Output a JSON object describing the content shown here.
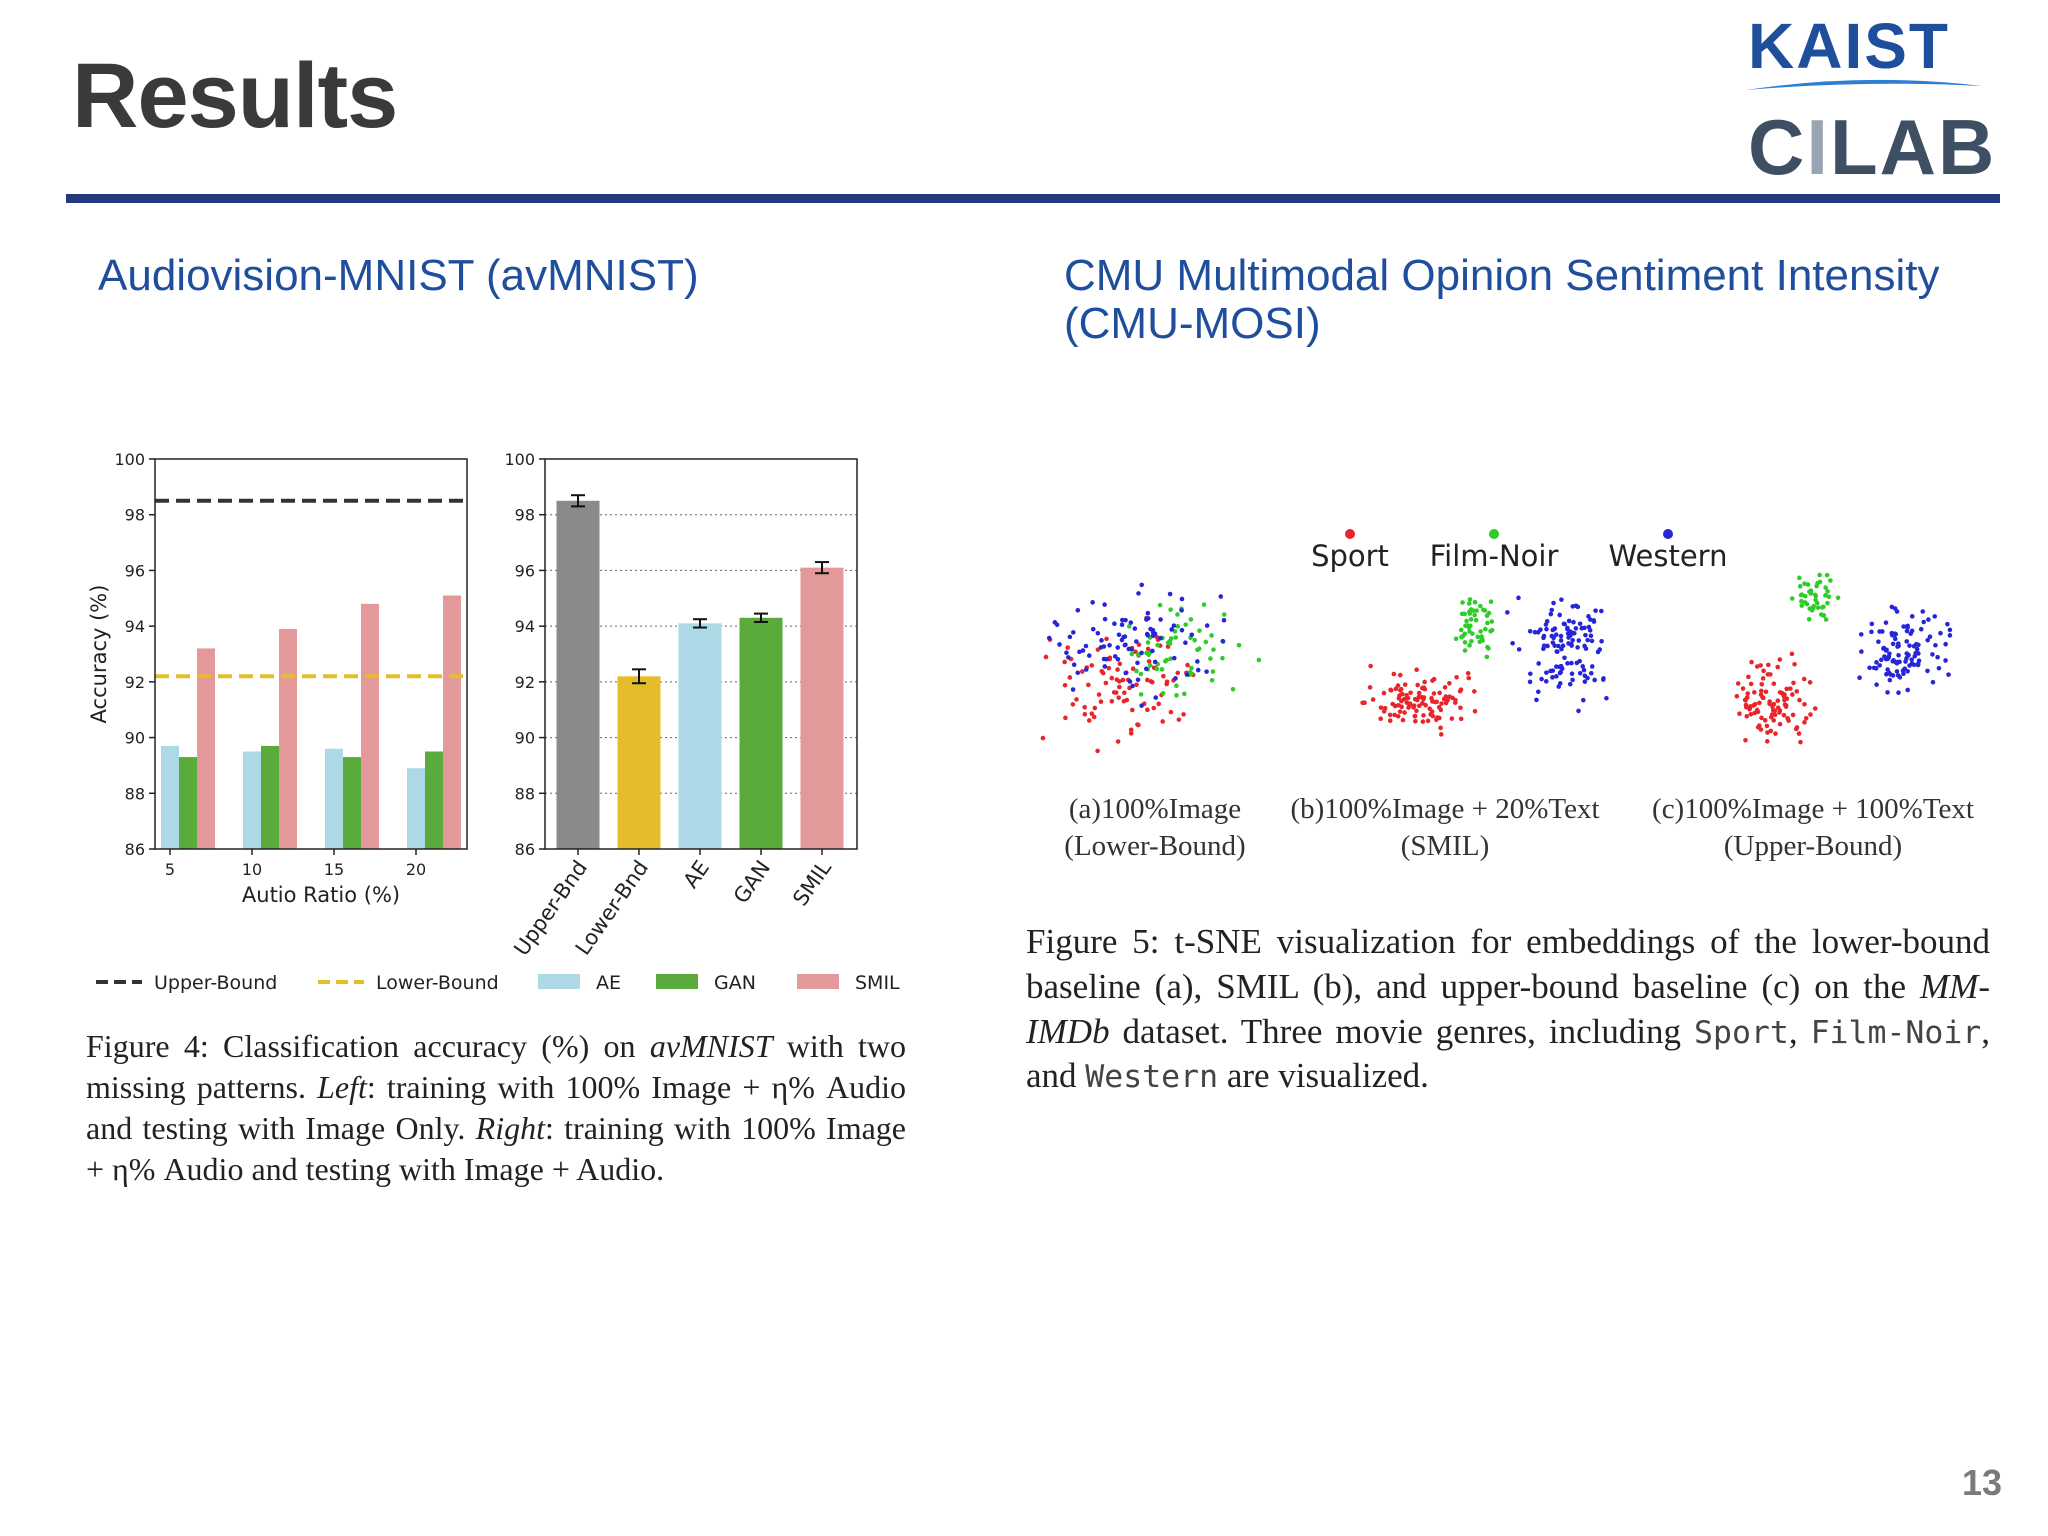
{
  "slide": {
    "title": "Results",
    "page_number": "13"
  },
  "logo": {
    "line1": "KAIST",
    "line2_prefix": "C",
    "line2_highlight": "I",
    "line2_suffix": "LAB"
  },
  "left": {
    "heading": "Audiovision-MNIST (avMNIST)",
    "caption": {
      "p1": "Figure 4: Classification accuracy (%) on ",
      "em1": "avMNIST",
      "p2": " with two missing patterns. ",
      "em2": "Left",
      "p3": ": training with 100% Image + η% Audio and testing with Image Only. ",
      "em3": "Right",
      "p4": ": training with 100% Image + η% Audio and testing with Image + Audio."
    }
  },
  "right": {
    "heading": "CMU Multimodal Opinion Sentiment Intensity (CMU-MOSI)",
    "tsne": {
      "legend": [
        {
          "label": "Sport",
          "color": "#e8262a"
        },
        {
          "label": "Film-Noir",
          "color": "#2ecc28"
        },
        {
          "label": "Western",
          "color": "#2626d8"
        }
      ],
      "panels": [
        {
          "line1": "(a)100%Image",
          "line2": "(Lower-Bound)"
        },
        {
          "line1": "(b)100%Image + 20%Text",
          "line2": "(SMIL)"
        },
        {
          "line1": "(c)100%Image + 100%Text",
          "line2": "(Upper-Bound)"
        }
      ]
    },
    "caption": {
      "p1": "Figure 5: t-SNE visualization for embeddings of the lower-bound baseline (a), SMIL (b), and upper-bound baseline (c) on the ",
      "em1": "MM-IMDb",
      "p2": " dataset. Three movie genres, including ",
      "m1": "Sport",
      "sep1": ", ",
      "m2": "Film-Noir",
      "sep2": ", and ",
      "m3": "Western",
      "p3": " are visualized."
    }
  },
  "chart_data": [
    {
      "type": "bar",
      "x": [
        5,
        10,
        15,
        20
      ],
      "xticks": [
        "5",
        "10",
        "15",
        "20"
      ],
      "xlabel": "Autio Ratio (%)",
      "ylabel": "Accuracy (%)",
      "ylim": [
        86,
        100
      ],
      "yticks": [
        "86",
        "88",
        "90",
        "92",
        "94",
        "96",
        "98",
        "100"
      ],
      "series": [
        {
          "name": "AE",
          "color": "#add8e6",
          "values": [
            89.7,
            89.5,
            89.6,
            88.9
          ]
        },
        {
          "name": "GAN",
          "color": "#5aab3c",
          "values": [
            89.3,
            89.7,
            89.3,
            89.5
          ]
        },
        {
          "name": "SMIL",
          "color": "#e3989a",
          "values": [
            93.2,
            93.9,
            94.8,
            95.1
          ]
        }
      ],
      "reference_lines": [
        {
          "name": "Upper-Bound",
          "value": 98.5,
          "color": "#333333",
          "style": "dashed"
        },
        {
          "name": "Lower-Bound",
          "value": 92.2,
          "color": "#e5bd2c",
          "style": "dashed"
        }
      ],
      "grid": false
    },
    {
      "type": "bar",
      "categories": [
        "Upper-Bnd",
        "Lower-Bnd",
        "AE",
        "GAN",
        "SMIL"
      ],
      "values": [
        98.5,
        92.2,
        94.1,
        94.3,
        96.1
      ],
      "errors": [
        0.2,
        0.25,
        0.15,
        0.15,
        0.2
      ],
      "colors": [
        "#8a8a8a",
        "#e5bd2c",
        "#add8e6",
        "#5aab3c",
        "#e3989a"
      ],
      "ylim": [
        86,
        100
      ],
      "yticks": [
        "86",
        "88",
        "90",
        "92",
        "94",
        "96",
        "98",
        "100"
      ],
      "grid": "horizontal dotted"
    }
  ],
  "shared_legend": [
    {
      "label": "Upper-Bound",
      "color": "#333333",
      "style": "dashed-line"
    },
    {
      "label": "Lower-Bound",
      "color": "#e5bd2c",
      "style": "dashed-line"
    },
    {
      "label": "AE",
      "color": "#add8e6",
      "style": "patch"
    },
    {
      "label": "GAN",
      "color": "#5aab3c",
      "style": "patch"
    },
    {
      "label": "SMIL",
      "color": "#e3989a",
      "style": "patch"
    }
  ]
}
